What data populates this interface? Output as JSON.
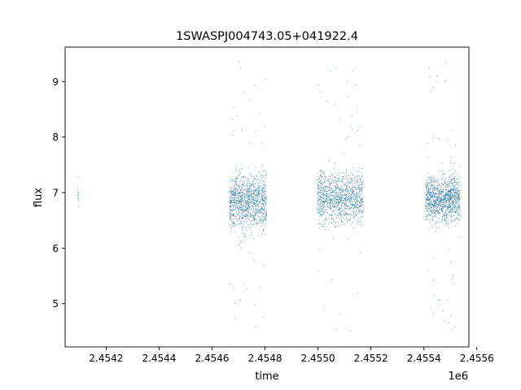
{
  "chart_data": {
    "type": "scatter",
    "title": "1SWASPJ004743.05+041922.4",
    "xlabel": "time",
    "ylabel": "flux",
    "x_offset_label": "1e6",
    "xlim": [
      2454045,
      2455570
    ],
    "ylim": [
      4.22,
      9.62
    ],
    "x_ticks": [
      2454200,
      2454400,
      2454600,
      2454800,
      2455000,
      2455200,
      2455400,
      2455600
    ],
    "x_tick_labels": [
      "2.4542",
      "2.4544",
      "2.4546",
      "2.4548",
      "2.4550",
      "2.4552",
      "2.4554",
      "2.4556"
    ],
    "y_ticks": [
      5,
      6,
      7,
      8,
      9
    ],
    "y_tick_labels": [
      "5",
      "6",
      "7",
      "8",
      "9"
    ],
    "grid": false,
    "legend": "none",
    "marker_color": "#1f77b4",
    "series": [
      {
        "segments": [
          {
            "x_range": [
              2454093,
              2454096
            ],
            "density": "sparse",
            "y_core": [
              6.4,
              7.5
            ],
            "y_outliers": [
              6.45,
              7.45
            ]
          },
          {
            "x_range": [
              2454666,
              2454806
            ],
            "density": "dense",
            "y_core": [
              5.85,
              7.85
            ],
            "y_outliers": [
              4.5,
              9.4
            ]
          },
          {
            "x_range": [
              2454996,
              2455170
            ],
            "density": "dense",
            "y_core": [
              5.95,
              7.85
            ],
            "y_outliers": [
              4.5,
              9.25
            ]
          },
          {
            "x_range": [
              2455406,
              2455536
            ],
            "density": "dense",
            "y_core": [
              6.05,
              7.75
            ],
            "y_outliers": [
              4.52,
              9.4
            ]
          }
        ]
      }
    ]
  }
}
